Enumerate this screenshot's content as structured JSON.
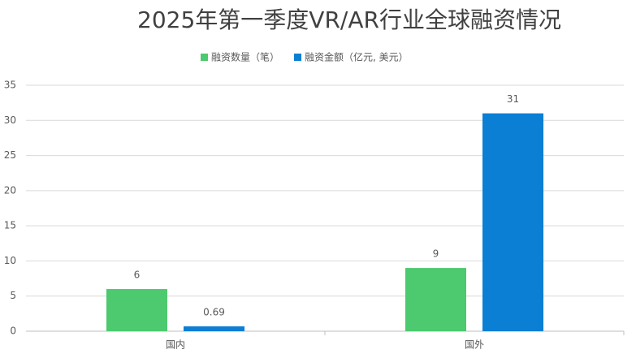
{
  "chart_data": {
    "type": "bar",
    "title": "2025年第一季度VR/AR行业全球融资情况",
    "categories": [
      "国内",
      "国外"
    ],
    "series": [
      {
        "name": "融资数量（笔）",
        "color": "#4dc96f",
        "values": [
          6,
          9
        ]
      },
      {
        "name": "融资金额（亿元, 美元）",
        "color": "#0b7fd4",
        "values": [
          0.69,
          31
        ]
      }
    ],
    "ylim": [
      0,
      35
    ],
    "yticks": [
      0,
      5,
      10,
      15,
      20,
      25,
      30,
      35
    ],
    "grid": true,
    "legend": "top"
  }
}
